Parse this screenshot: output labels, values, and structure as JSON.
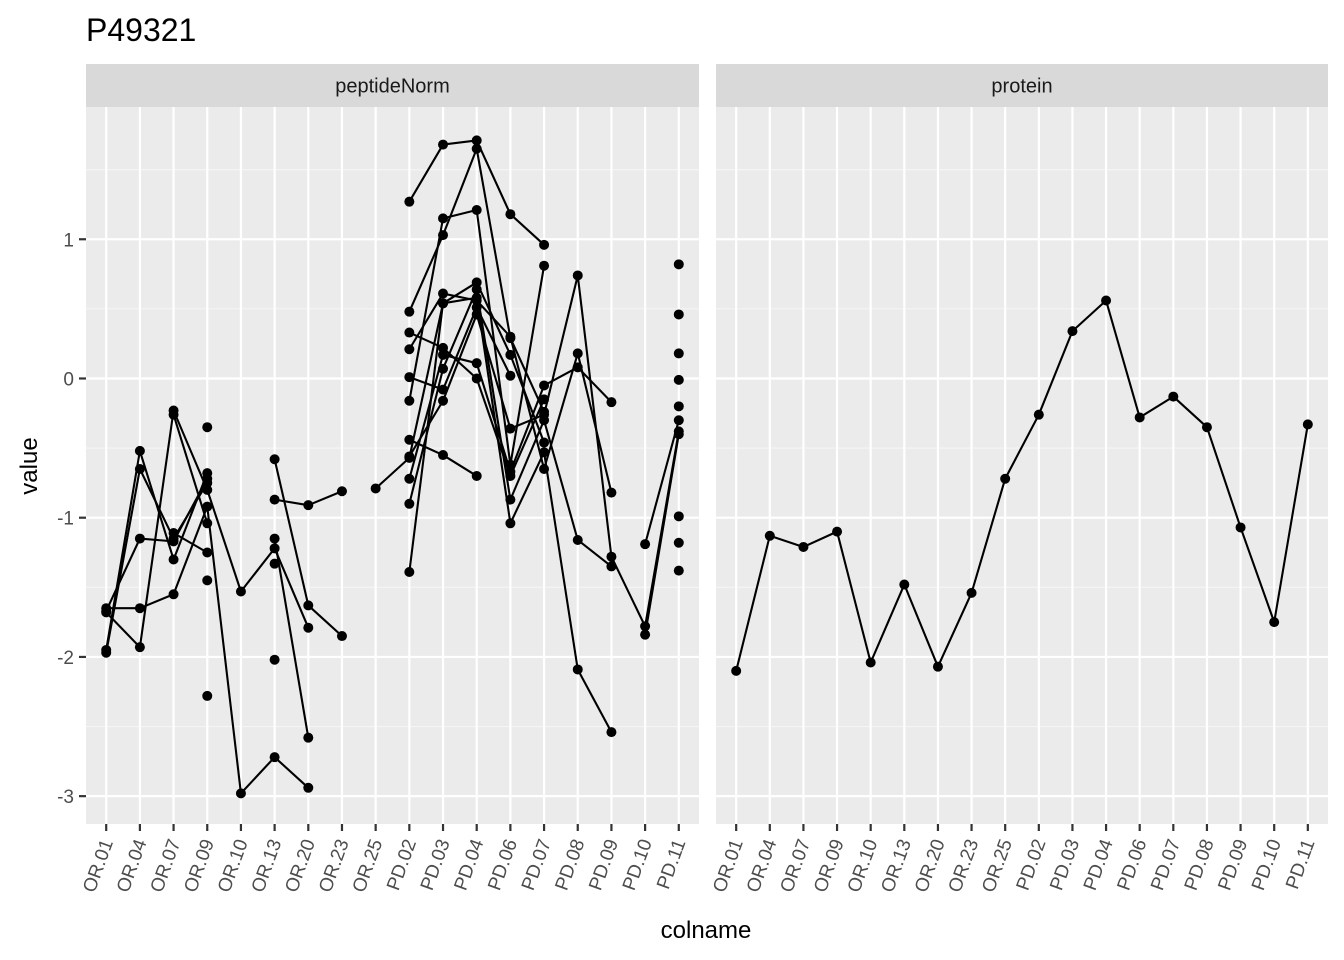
{
  "chart_data": {
    "type": "line",
    "title": "P49321",
    "xlabel": "colname",
    "ylabel": "value",
    "ylim": [
      -3.2,
      1.95
    ],
    "yticks": [
      -3,
      -2,
      -1,
      0,
      1
    ],
    "yticklabels": [
      "-3",
      "-2",
      "-1",
      "0",
      "1"
    ],
    "grid": true,
    "categories": [
      "OR.01",
      "OR.04",
      "OR.07",
      "OR.09",
      "OR.10",
      "OR.13",
      "OR.20",
      "OR.23",
      "OR.25",
      "PD.02",
      "PD.03",
      "PD.04",
      "PD.06",
      "PD.07",
      "PD.08",
      "PD.09",
      "PD.10",
      "PD.11"
    ],
    "colors": {
      "panel": "#ebebeb",
      "grid_major": "#ffffff",
      "grid_minor": "#f5f5f5",
      "strip": "#d9d9d9",
      "series": "#000000"
    },
    "panels": [
      {
        "strip": "peptideNorm",
        "series": [
          {
            "values": [
              -1.95,
              -0.52,
              -1.3,
              -0.68,
              null,
              -0.87,
              -0.91,
              -0.81,
              null,
              -0.9,
              0.07,
              0.64,
              -0.87,
              -0.3,
              -1.16,
              -1.35,
              null,
              null
            ]
          },
          {
            "values": [
              -1.97,
              -0.65,
              -1.15,
              -0.75,
              null,
              -0.58,
              -1.63,
              -1.85,
              null,
              -0.72,
              0.17,
              0.11,
              -0.67,
              -0.05,
              0.08,
              -0.17,
              null,
              null
            ]
          },
          {
            "values": [
              -1.67,
              -1.15,
              -1.17,
              -0.72,
              null,
              -1.15,
              -2.58,
              null,
              null,
              0.21,
              0.61,
              0.56,
              0.3,
              -0.65,
              0.18,
              -0.82,
              null,
              null
            ]
          },
          {
            "values": [
              -1.68,
              -1.93,
              -0.23,
              -0.8,
              -1.53,
              -1.22,
              -1.79,
              null,
              -0.79,
              -0.57,
              0.54,
              0.58,
              -1.04,
              -0.53,
              -2.09,
              -2.54,
              null,
              null
            ]
          },
          {
            "values": [
              -1.65,
              -1.65,
              -1.55,
              -0.92,
              -2.98,
              -2.72,
              -2.94,
              null,
              null,
              -0.56,
              -0.16,
              0.46,
              -0.36,
              -0.26,
              0.74,
              -1.28,
              -1.78,
              -0.38
            ]
          },
          {
            "values": [
              null,
              null,
              -0.26,
              -1.04,
              null,
              -1.33,
              null,
              null,
              null,
              -1.39,
              0.54,
              0.69,
              0.17,
              -0.46,
              null,
              null,
              -1.84,
              -0.4
            ]
          },
          {
            "values": [
              null,
              null,
              -1.11,
              -1.25,
              null,
              -2.02,
              null,
              null,
              null,
              -0.16,
              1.15,
              1.21,
              -0.62,
              0.81,
              null,
              null,
              -1.19,
              -0.3
            ]
          },
          {
            "values": [
              null,
              null,
              null,
              -0.35,
              null,
              null,
              null,
              null,
              null,
              0.33,
              0.22,
              0.0,
              -0.7,
              -0.15,
              null,
              null,
              null,
              -0.2
            ]
          },
          {
            "values": [
              null,
              null,
              null,
              -1.45,
              null,
              null,
              null,
              null,
              null,
              1.27,
              1.68,
              1.71,
              1.18,
              0.96,
              null,
              null,
              null,
              0.82
            ]
          },
          {
            "values": [
              null,
              null,
              null,
              -2.28,
              null,
              null,
              null,
              null,
              null,
              0.48,
              1.03,
              1.65,
              0.29,
              -0.24,
              null,
              null,
              null,
              0.46
            ]
          },
          {
            "values": [
              null,
              null,
              null,
              null,
              null,
              null,
              null,
              null,
              null,
              0.01,
              -0.08,
              0.51,
              0.02,
              null,
              null,
              null,
              null,
              0.18
            ]
          },
          {
            "values": [
              null,
              null,
              null,
              null,
              null,
              null,
              null,
              null,
              null,
              -0.44,
              -0.55,
              -0.7,
              null,
              null,
              null,
              null,
              null,
              -0.01
            ]
          },
          {
            "values": [
              null,
              null,
              null,
              null,
              null,
              null,
              null,
              null,
              null,
              null,
              null,
              null,
              null,
              null,
              null,
              null,
              null,
              -0.99
            ]
          },
          {
            "values": [
              null,
              null,
              null,
              null,
              null,
              null,
              null,
              null,
              null,
              null,
              null,
              null,
              null,
              null,
              null,
              null,
              null,
              -1.18
            ]
          },
          {
            "values": [
              null,
              null,
              null,
              null,
              null,
              null,
              null,
              null,
              null,
              null,
              null,
              null,
              null,
              null,
              null,
              null,
              null,
              -1.38
            ]
          }
        ]
      },
      {
        "strip": "protein",
        "series": [
          {
            "values": [
              -2.1,
              -1.13,
              -1.21,
              -1.1,
              -2.04,
              -1.48,
              -2.07,
              -1.54,
              -0.72,
              -0.26,
              0.34,
              0.56,
              -0.28,
              -0.13,
              -0.35,
              -1.07,
              -1.75,
              -0.33
            ]
          }
        ]
      }
    ]
  }
}
